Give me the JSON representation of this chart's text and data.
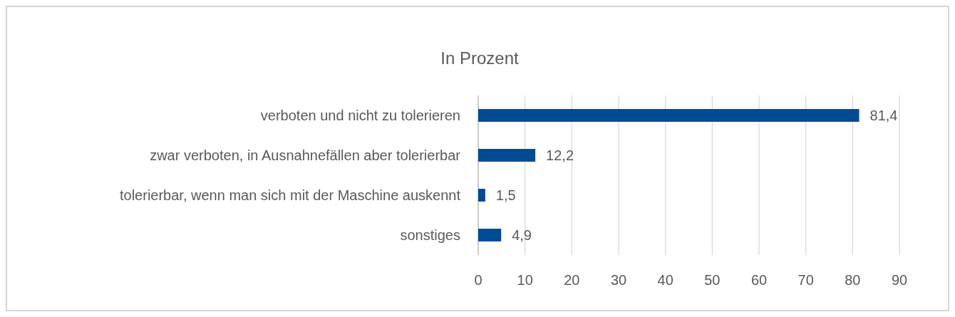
{
  "chart_data": {
    "type": "bar",
    "orientation": "horizontal",
    "title": "In Prozent",
    "categories": [
      "verboten und nicht zu tolerieren",
      "zwar verboten, in Ausnahnefällen aber tolerierbar",
      "tolerierbar, wenn man sich mit der Maschine auskennt",
      "sonstiges"
    ],
    "values": [
      81.4,
      12.2,
      1.5,
      4.9
    ],
    "value_labels": [
      "81,4",
      "12,2",
      "1,5",
      "4,9"
    ],
    "color": "#004a94",
    "xlim": [
      0,
      90
    ],
    "xticks": [
      0,
      10,
      20,
      30,
      40,
      50,
      60,
      70,
      80,
      90
    ],
    "grid": "x"
  }
}
